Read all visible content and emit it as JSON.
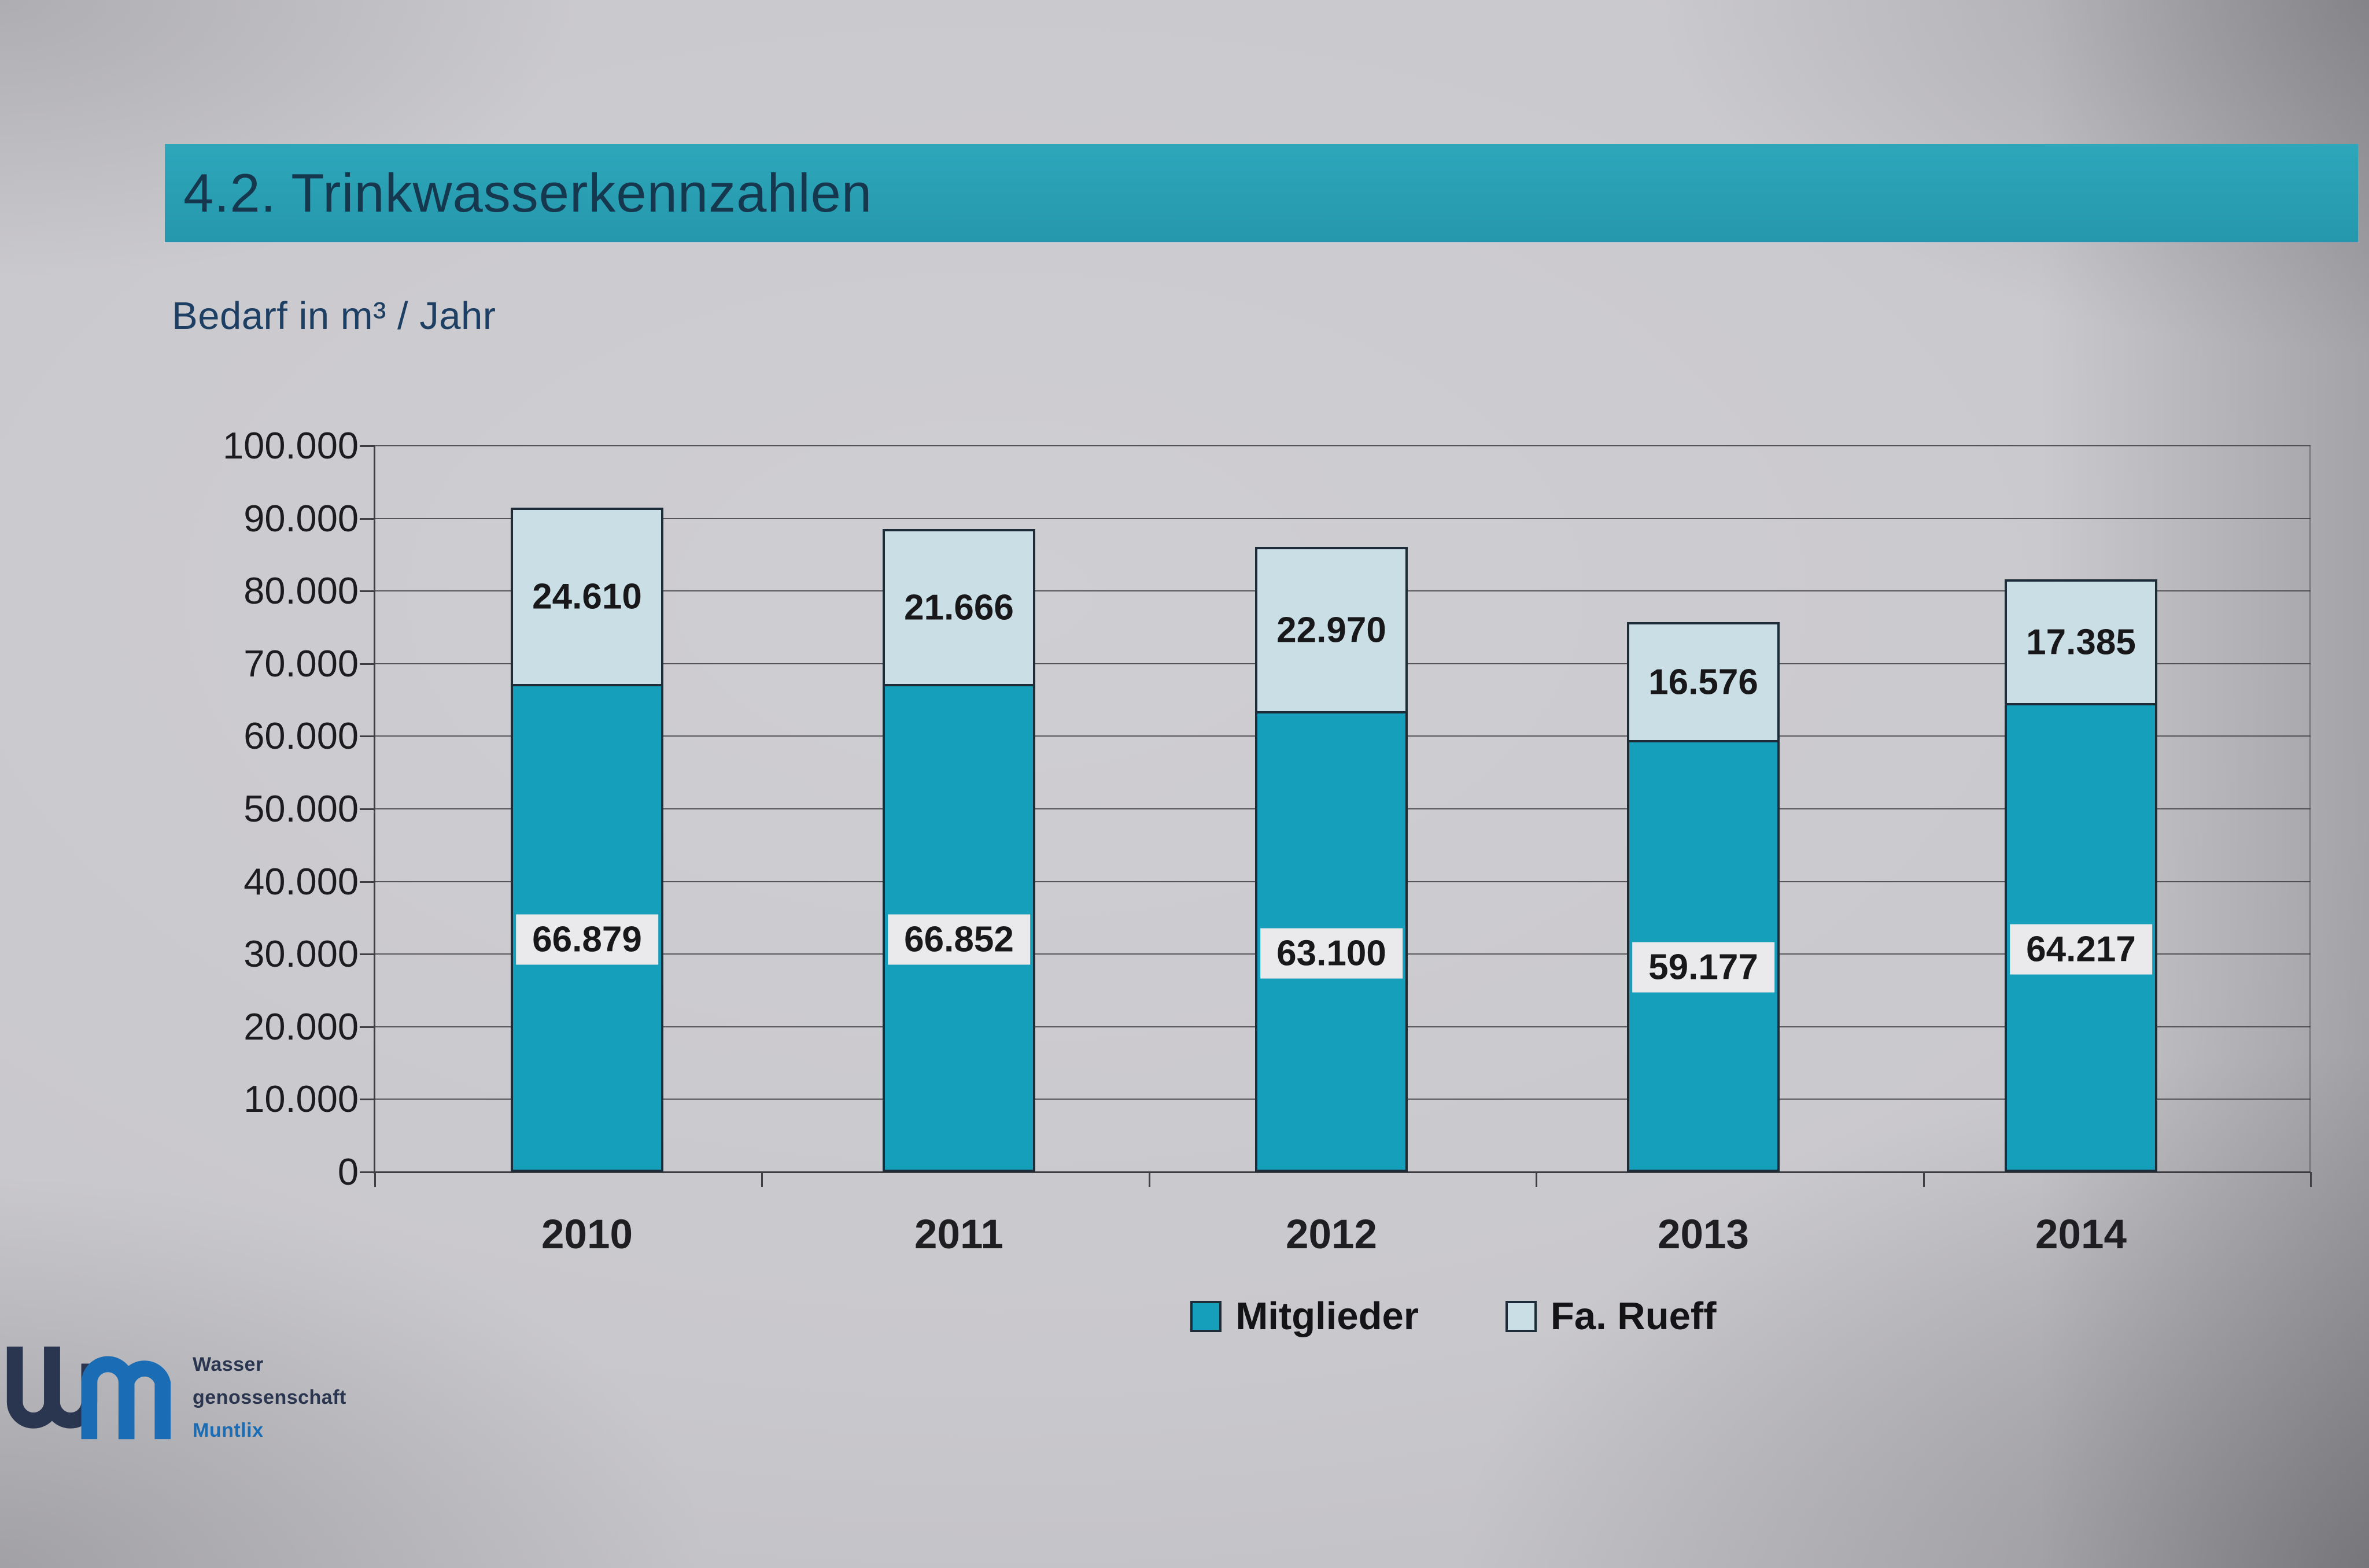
{
  "title_bar": {
    "text": "4.2. Trinkwasserkennzahlen"
  },
  "subtitle": "Bedarf in m³ / Jahr",
  "chart_data": {
    "type": "bar",
    "stacked": true,
    "categories": [
      "2010",
      "2011",
      "2012",
      "2013",
      "2014"
    ],
    "series": [
      {
        "name": "Mitglieder",
        "color": "#169fbb",
        "values": [
          66879,
          66852,
          63100,
          59177,
          64217
        ]
      },
      {
        "name": "Fa. Rueff",
        "color": "#cadee5",
        "values": [
          24610,
          21666,
          22970,
          16576,
          17385
        ]
      }
    ],
    "totals": [
      91489,
      88518,
      86070,
      75753,
      81602
    ],
    "ylim": [
      0,
      100000
    ],
    "ytick_step": 10000,
    "ytick_labels": [
      "0",
      "10.000",
      "20.000",
      "30.000",
      "40.000",
      "50.000",
      "60.000",
      "70.000",
      "80.000",
      "90.000",
      "100.000"
    ],
    "grid": true,
    "legend_position": "bottom-center",
    "value_label_separator": "."
  },
  "colors": {
    "title_band": "#2aa1b6",
    "title_text": "#16384e",
    "subtitle_text": "#1d3f63",
    "bar_border": "#1e2b38",
    "label_box_bg": "#eae9ec",
    "logo_navy": "#2a3550",
    "logo_blue": "#1a6db4"
  },
  "logo": {
    "mark": "wm",
    "lines": [
      "Wasser",
      "genossenschaft",
      "Muntlix"
    ]
  }
}
